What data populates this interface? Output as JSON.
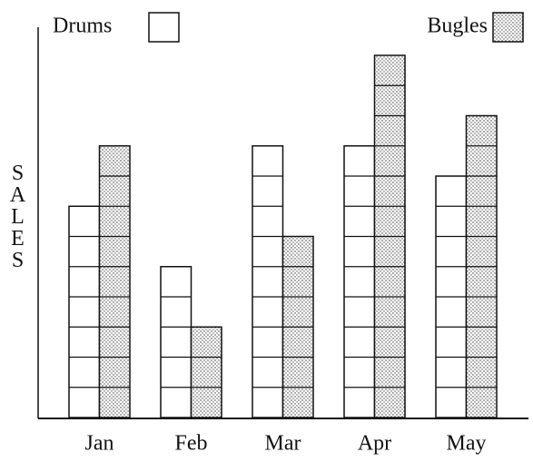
{
  "chart_data": {
    "type": "bar",
    "y_label": "SALES",
    "categories": [
      "Jan",
      "Feb",
      "Mar",
      "Apr",
      "May"
    ],
    "series": [
      {
        "name": "Drums",
        "color": "#ffffff",
        "values": [
          7,
          5,
          9,
          9,
          8
        ]
      },
      {
        "name": "Bugles",
        "color": "#ffffff",
        "pattern": "dots",
        "values": [
          9,
          3,
          6,
          12,
          10
        ]
      }
    ]
  }
}
